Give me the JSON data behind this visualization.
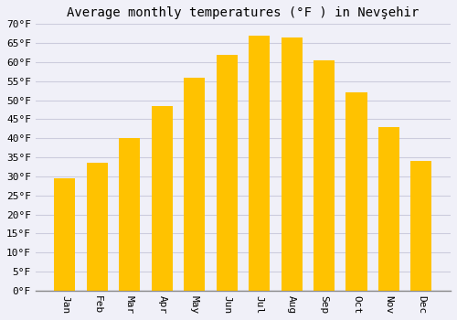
{
  "title": "Average monthly temperatures (°F ) in Nevşehir",
  "months": [
    "Jan",
    "Feb",
    "Mar",
    "Apr",
    "May",
    "Jun",
    "Jul",
    "Aug",
    "Sep",
    "Oct",
    "Nov",
    "Dec"
  ],
  "values": [
    29.5,
    33.5,
    40.0,
    48.5,
    56.0,
    62.0,
    67.0,
    66.5,
    60.5,
    52.0,
    43.0,
    34.0
  ],
  "bar_color_top": "#FFC200",
  "bar_color_bottom": "#FFA000",
  "bar_edge_color": "none",
  "background_color": "#f0f0f8",
  "grid_color": "#ccccdd",
  "ylim": [
    0,
    70
  ],
  "ytick_values": [
    0,
    5,
    10,
    15,
    20,
    25,
    30,
    35,
    40,
    45,
    50,
    55,
    60,
    65,
    70
  ],
  "title_fontsize": 10,
  "tick_fontsize": 8,
  "font_family": "monospace",
  "xtick_rotation": 270
}
